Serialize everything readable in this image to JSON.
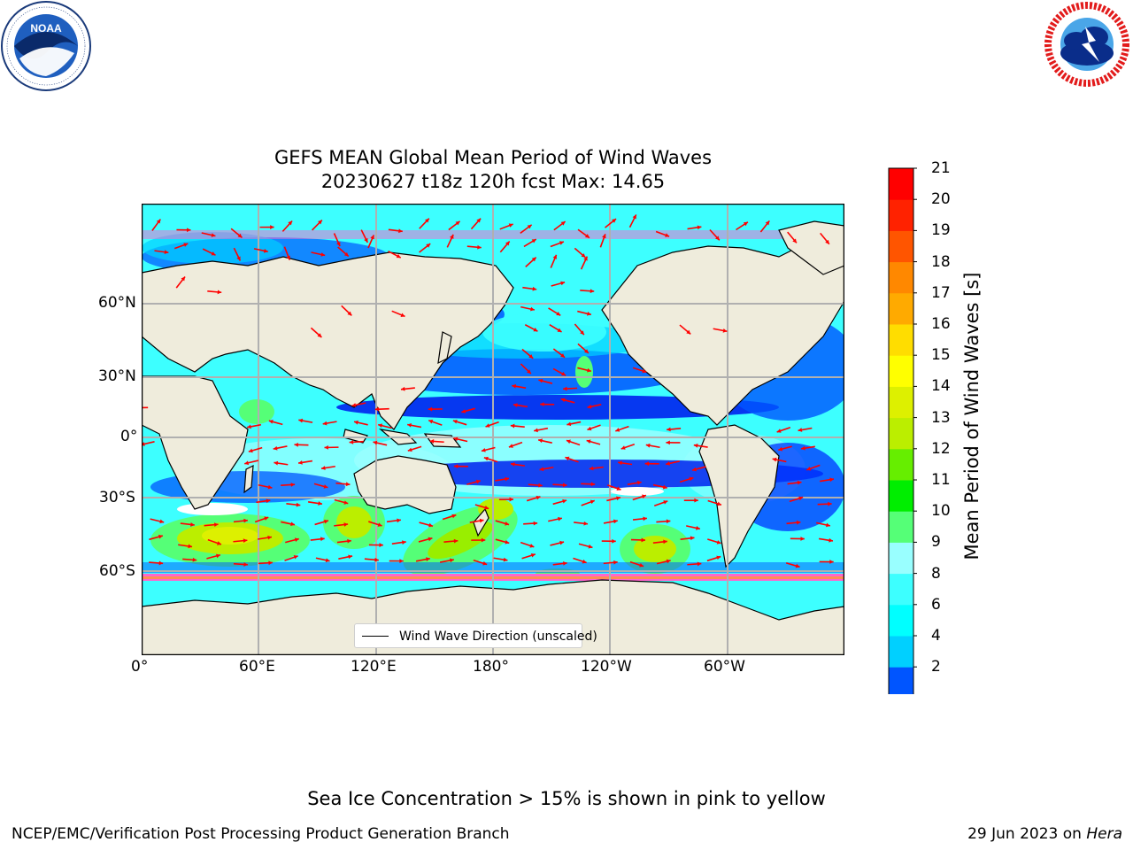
{
  "title": {
    "line1": "GEFS MEAN Global Mean Period of Wind Waves",
    "line2": "20230627 t18z 120h fcst   Max: 14.65"
  },
  "logos": {
    "left": {
      "name": "NOAA",
      "ring_text": "NATIONAL OCEANIC AND ATMOSPHERIC ADMINISTRATION · U.S. DEPARTMENT OF COMMERCE"
    },
    "right": {
      "name": "National Weather Service",
      "ring_text": "NATIONAL WEATHER SERVICE"
    }
  },
  "map": {
    "projection": "PlateCarree",
    "lon_ticks": [
      "0°",
      "60°E",
      "120°E",
      "180°",
      "120°W",
      "60°W"
    ],
    "lat_ticks": [
      "60°N",
      "30°N",
      "0°",
      "30°S",
      "60°S"
    ],
    "legend_label": "Wind Wave Direction (unscaled)",
    "arrow_color": "#ff0000",
    "land_color": "#efecdc",
    "ice_colors": [
      "#ff66cc",
      "#ffaa00",
      "#ffff00"
    ]
  },
  "colorbar": {
    "label": "Mean Period of Wind Waves [s]",
    "ticks": [
      "21",
      "20",
      "19",
      "18",
      "17",
      "16",
      "15",
      "14",
      "13",
      "12",
      "11",
      "10",
      "9",
      "8",
      "6",
      "4",
      "2"
    ],
    "levels": [
      2,
      4,
      6,
      8,
      9,
      10,
      11,
      12,
      13,
      14,
      15,
      16,
      17,
      18,
      19,
      20,
      21
    ],
    "colors": [
      "#0055ff",
      "#00d0ff",
      "#00ffff",
      "#3dffff",
      "#99ffff",
      "#55ff77",
      "#00ee00",
      "#66ee00",
      "#bbee00",
      "#ddf000",
      "#ffff00",
      "#ffdd00",
      "#ffaa00",
      "#ff8800",
      "#ff5500",
      "#ff2200",
      "#ff0000"
    ],
    "extend_min_color": "#0000ff"
  },
  "footer": {
    "note": "Sea Ice Concentration > 15% is shown in pink to yellow",
    "left": "NCEP/EMC/Verification Post Processing Product Generation Branch",
    "right_date": "29 Jun 2023 on",
    "right_host": "Hera"
  }
}
